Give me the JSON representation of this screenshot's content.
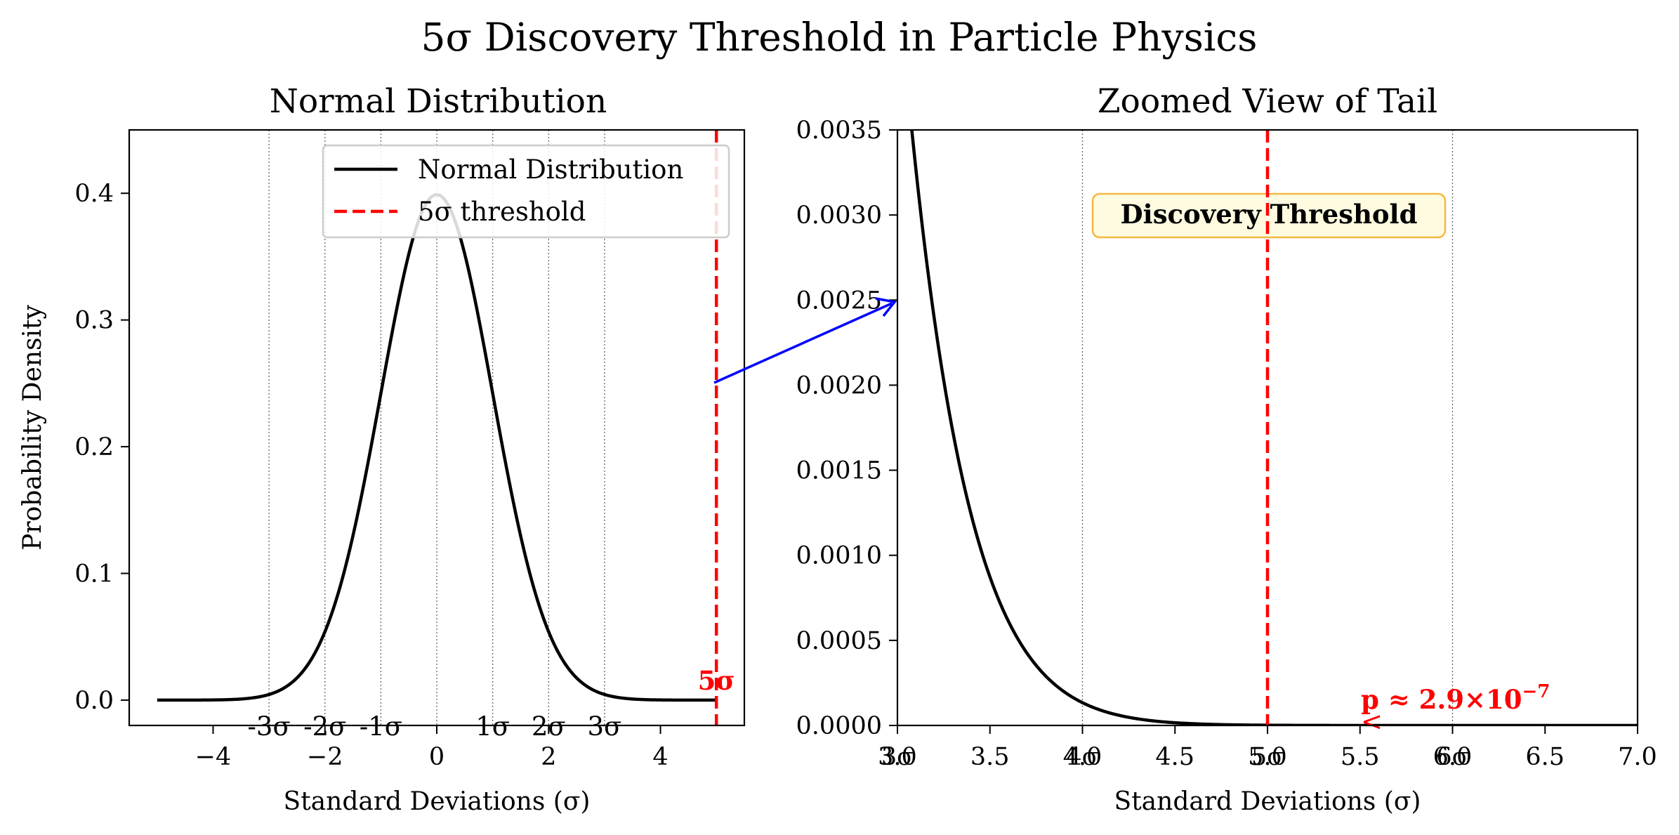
{
  "chart_data": {
    "suptitle": "5σ Discovery Threshold in Particle Physics",
    "panels": [
      {
        "type": "line",
        "title": "Normal Distribution",
        "xlabel": "Standard Deviations (σ)",
        "ylabel": "Probability Density",
        "xlim": [
          -5.5,
          5.5
        ],
        "ylim": [
          -0.02,
          0.45
        ],
        "x_ticks": [
          -4,
          -2,
          0,
          2,
          4
        ],
        "x_tick_labels": [
          "−4",
          "−2",
          "0",
          "2",
          "4"
        ],
        "y_ticks": [
          0.0,
          0.1,
          0.2,
          0.3,
          0.4
        ],
        "y_tick_labels": [
          "0.0",
          "0.1",
          "0.2",
          "0.3",
          "0.4"
        ],
        "curve": {
          "name": "Normal Distribution",
          "function": "standard normal pdf",
          "x_range": [
            -5,
            5
          ],
          "color": "#000000"
        },
        "threshold": {
          "name": "5σ threshold",
          "x": 5,
          "color": "#ff0000",
          "label": "5σ"
        },
        "sigma_lines": [
          -3,
          -2,
          -1,
          0,
          1,
          2,
          3
        ],
        "sigma_labels": [
          {
            "x": -3,
            "text": "-3σ"
          },
          {
            "x": -2,
            "text": "-2σ"
          },
          {
            "x": -1,
            "text": "-1σ"
          },
          {
            "x": 1,
            "text": "1σ"
          },
          {
            "x": 2,
            "text": "2σ"
          },
          {
            "x": 3,
            "text": "3σ"
          }
        ],
        "legend": {
          "placement": "top-right",
          "entries": [
            "Normal Distribution",
            "5σ threshold"
          ]
        }
      },
      {
        "type": "line",
        "title": "Zoomed View of Tail",
        "xlabel": "Standard Deviations (σ)",
        "xlim": [
          3.0,
          7.0
        ],
        "ylim": [
          0.0,
          0.0035
        ],
        "x_ticks": [
          3.0,
          3.5,
          4.0,
          4.5,
          5.0,
          5.5,
          6.0,
          6.5,
          7.0
        ],
        "x_tick_labels": [
          "3.0",
          "3.5",
          "4.0",
          "4.5",
          "5.0",
          "5.5",
          "6.0",
          "6.5",
          "7.0"
        ],
        "y_ticks": [
          0.0,
          0.0005,
          0.001,
          0.0015,
          0.002,
          0.0025,
          0.003,
          0.0035
        ],
        "y_tick_labels": [
          "0.0000",
          "0.0005",
          "0.0010",
          "0.0015",
          "0.0020",
          "0.0025",
          "0.0030",
          "0.0035"
        ],
        "curve": {
          "name": "Normal Distribution (tail)",
          "function": "standard normal pdf",
          "x_range": [
            3,
            7
          ],
          "color": "#000000"
        },
        "threshold": {
          "x": 5,
          "color": "#ff0000"
        },
        "sigma_lines": [
          4,
          5,
          6
        ],
        "sigma_overlay_labels": [
          {
            "x": 3,
            "text": "3σ"
          },
          {
            "x": 4,
            "text": "4σ"
          },
          {
            "x": 5,
            "text": "5σ"
          },
          {
            "x": 6,
            "text": "6σ"
          }
        ],
        "threshold_box": "Discovery Threshold",
        "p_value_annotation": {
          "text": "p ≈ 2.9×10",
          "exponent": "−7",
          "x": 5.5,
          "arrow_symbol": "<"
        }
      }
    ],
    "connector_arrow": {
      "from": "left panel (x=5, y=0.25)",
      "to": "right panel (x=3, y=0.0025)",
      "color": "#0000ff"
    }
  }
}
